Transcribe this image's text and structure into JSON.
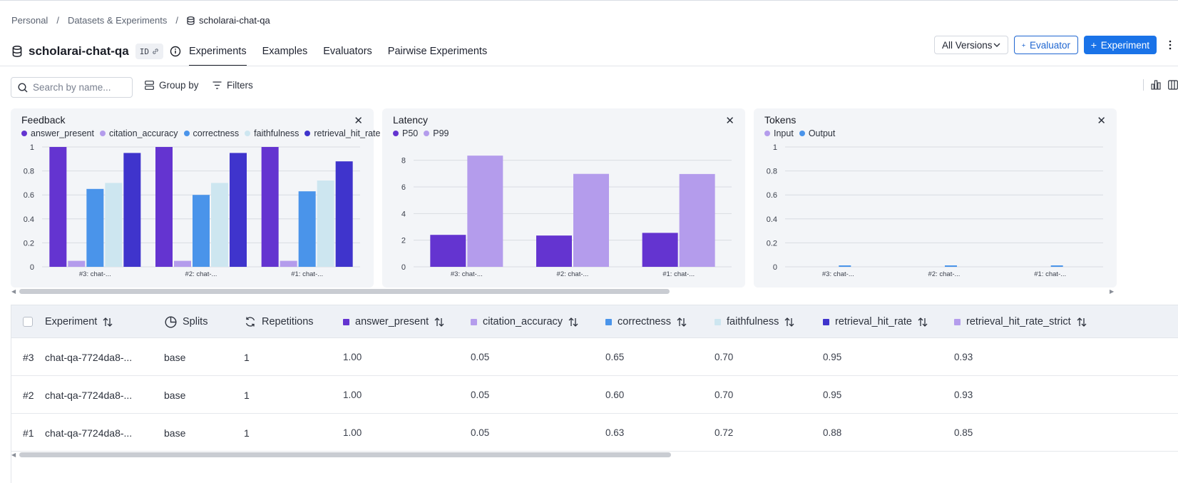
{
  "breadcrumb": {
    "items": [
      "Personal",
      "Datasets & Experiments"
    ],
    "current": "scholarai-chat-qa",
    "separator": "/"
  },
  "header": {
    "title": "scholarai-chat-qa",
    "id_chip": "ID",
    "tabs": [
      "Experiments",
      "Examples",
      "Evaluators",
      "Pairwise Experiments"
    ],
    "active_tab": "Experiments",
    "version_select": "All Versions",
    "evaluator_button": "Evaluator",
    "experiment_button": "Experiment"
  },
  "toolbar": {
    "search_placeholder": "Search by name...",
    "group_by": "Group by",
    "filters": "Filters"
  },
  "colors": {
    "answer_present": "#6434d0",
    "citation_accuracy": "#b49cec",
    "correctness": "#4a94ea",
    "faithfulness": "#cde6f0",
    "retrieval_hit_rate": "#3f34cc",
    "retrieval_hit_rate_strict": "#b49cec",
    "accent": "#1a73e8"
  },
  "chart_data": [
    {
      "type": "bar",
      "title": "Feedback",
      "categories": [
        "#3: chat-...",
        "#2: chat-...",
        "#1: chat-..."
      ],
      "series": [
        {
          "name": "answer_present",
          "values": [
            1.0,
            1.0,
            1.0
          ]
        },
        {
          "name": "citation_accuracy",
          "values": [
            0.05,
            0.05,
            0.05
          ]
        },
        {
          "name": "correctness",
          "values": [
            0.65,
            0.6,
            0.63
          ]
        },
        {
          "name": "faithfulness",
          "values": [
            0.7,
            0.7,
            0.72
          ]
        },
        {
          "name": "retrieval_hit_rate",
          "values": [
            0.95,
            0.95,
            0.88
          ]
        }
      ],
      "yticks": [
        "0",
        "0.2",
        "0.4",
        "0.6",
        "0.8",
        "1"
      ],
      "ylim": [
        0,
        1
      ]
    },
    {
      "type": "bar",
      "title": "Latency",
      "categories": [
        "#3: chat-...",
        "#2: chat-...",
        "#1: chat-..."
      ],
      "series": [
        {
          "name": "P50",
          "values": [
            2.4,
            2.35,
            2.55
          ]
        },
        {
          "name": "P99",
          "values": [
            8.35,
            6.98,
            6.97
          ]
        }
      ],
      "yticks": [
        "0",
        "2",
        "4",
        "6",
        "8"
      ],
      "ylim": [
        0,
        9
      ]
    },
    {
      "type": "bar",
      "title": "Tokens",
      "categories": [
        "#3: chat-...",
        "#2: chat-...",
        "#1: chat-..."
      ],
      "series": [
        {
          "name": "Input",
          "values": [
            0,
            0,
            0
          ]
        },
        {
          "name": "Output",
          "values": [
            0.01,
            0.01,
            0.01
          ]
        }
      ],
      "yticks": [
        "0",
        "0.2",
        "0.4",
        "0.6",
        "0.8",
        "1"
      ],
      "ylim": [
        0,
        1
      ]
    }
  ],
  "table": {
    "columns": [
      "Experiment",
      "Splits",
      "Repetitions",
      "answer_present",
      "citation_accuracy",
      "correctness",
      "faithfulness",
      "retrieval_hit_rate",
      "retrieval_hit_rate_strict"
    ],
    "rows": [
      {
        "num": "#3",
        "name": "chat-qa-7724da8-...",
        "split": "base",
        "reps": "1",
        "answer_present": "1.00",
        "citation_accuracy": "0.05",
        "correctness": "0.65",
        "faithfulness": "0.70",
        "retrieval_hit_rate": "0.95",
        "retrieval_hit_rate_strict": "0.93"
      },
      {
        "num": "#2",
        "name": "chat-qa-7724da8-...",
        "split": "base",
        "reps": "1",
        "answer_present": "1.00",
        "citation_accuracy": "0.05",
        "correctness": "0.60",
        "faithfulness": "0.70",
        "retrieval_hit_rate": "0.95",
        "retrieval_hit_rate_strict": "0.93"
      },
      {
        "num": "#1",
        "name": "chat-qa-7724da8-...",
        "split": "base",
        "reps": "1",
        "answer_present": "1.00",
        "citation_accuracy": "0.05",
        "correctness": "0.63",
        "faithfulness": "0.72",
        "retrieval_hit_rate": "0.88",
        "retrieval_hit_rate_strict": "0.85"
      }
    ]
  }
}
